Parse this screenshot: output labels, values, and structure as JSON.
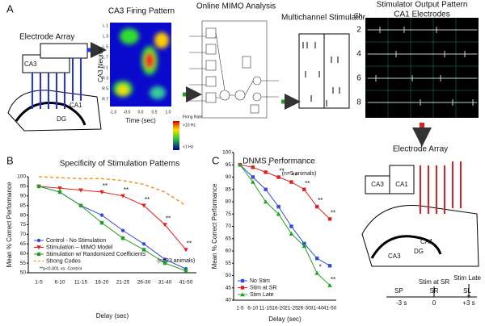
{
  "panel_a": {
    "label": "A",
    "firing_title": "CA3 Firing Pattern",
    "electrode_array": "Electrode Array",
    "ca3": "CA3",
    "ca1": "CA1",
    "dg": "DG",
    "y_label": "CA3 Neuron",
    "y_ticks": [
      "L 1",
      "L 3",
      "L 5",
      "L 7",
      "R 1",
      "R 3",
      "R 5",
      "R 7"
    ],
    "x_label": "Time (sec)",
    "x_ticks": [
      "-1.0",
      "-0.5",
      "0.0",
      "0.5",
      "1.0"
    ],
    "legend_title": "Firing Rate",
    "legend_high": ">10 Hz",
    "legend_low": "<1 Hz",
    "mimo_title": "Online MIMO Analysis",
    "stimulator_title": "Multichannel Stimulator",
    "output_title": "Stimulator Output Pattern",
    "output_subtitle": "CA1 Electrodes",
    "channel_label": "Ch.",
    "channels": [
      "2",
      "4",
      "6",
      "8"
    ],
    "electrode_array_2": "Electrode Array",
    "box_ca3": "CA3",
    "box_ca1": "CA1",
    "ca1_2": "CA1",
    "ca3_2": "CA3",
    "dg_2": "DG",
    "stim_sr": "Stim at SR",
    "stim_late": "Stim Late",
    "sp": "SP",
    "sr": "SR",
    "sl": "SL",
    "t_minus": "-3 s",
    "t_zero": "0",
    "t_plus": "+3 s"
  },
  "chart_data": [
    {
      "type": "line",
      "panel_label": "B",
      "title": "Specificity of Stimulation Patterns",
      "x_label": "Delay (sec)",
      "y_label": "Mean % Correct Performance",
      "categories": [
        "1-5",
        "6-10",
        "11-15",
        "16-20",
        "21-25",
        "26-30",
        "31-40",
        "41-50"
      ],
      "ylim": [
        50,
        100
      ],
      "yticks": [
        50,
        55,
        60,
        65,
        70,
        75,
        80,
        85,
        90,
        95,
        100
      ],
      "legend": "lower left",
      "note": "(n=23 animals)",
      "footnote": "**p<0.001 vs. Control",
      "series": [
        {
          "name": "Control - No Stimulation",
          "color": "#2f4fd8",
          "marker": "circle",
          "values": [
            95,
            92,
            85,
            80,
            72,
            65,
            57,
            52
          ]
        },
        {
          "name": "Stimulation – MIMO Model",
          "color": "#e02020",
          "marker": "triangle-down",
          "values": [
            95,
            94,
            93,
            92,
            90,
            85,
            75,
            62
          ],
          "significance": [
            null,
            null,
            null,
            "**",
            "**",
            "**",
            "**",
            "**"
          ]
        },
        {
          "name": "Stimulation w/ Randomized Coefficients",
          "color": "#22a022",
          "marker": "square",
          "values": [
            95,
            92,
            85,
            76,
            68,
            62,
            55,
            51
          ]
        },
        {
          "name": "Strong Codes",
          "color": "#f0961e",
          "marker": "none",
          "dash": true,
          "values": [
            100,
            99.5,
            99,
            99,
            98,
            96,
            92,
            85
          ]
        }
      ]
    },
    {
      "type": "line",
      "panel_label": "C",
      "title": "DNMS Performance",
      "x_label": "Delay (sec)",
      "y_label": "Mean % Correct Performance",
      "categories": [
        "1-5",
        "6-10",
        "11-15",
        "16-20",
        "21-25",
        "26-30",
        "31-40",
        "41-50"
      ],
      "ylim": [
        40,
        100
      ],
      "yticks": [
        40,
        45,
        50,
        55,
        60,
        65,
        70,
        75,
        80,
        85,
        90,
        95,
        100
      ],
      "legend": "lower left",
      "note": "(n=9 animals)",
      "series": [
        {
          "name": "No Stim",
          "color": "#2f4fd8",
          "marker": "square",
          "values": [
            95,
            90,
            85,
            78,
            70,
            63,
            57,
            54
          ]
        },
        {
          "name": "Stim at SR",
          "color": "#e02020",
          "marker": "square",
          "values": [
            95,
            94,
            92,
            90,
            88,
            85,
            78,
            73
          ],
          "significance": [
            null,
            null,
            "*",
            "**",
            "**",
            "**",
            "**",
            "**"
          ]
        },
        {
          "name": "Stim Late",
          "color": "#22a022",
          "marker": "triangle",
          "values": [
            95,
            88,
            80,
            75,
            67,
            62,
            51,
            46
          ],
          "significance": [
            null,
            null,
            null,
            null,
            null,
            null,
            "*",
            "**"
          ]
        }
      ]
    }
  ]
}
